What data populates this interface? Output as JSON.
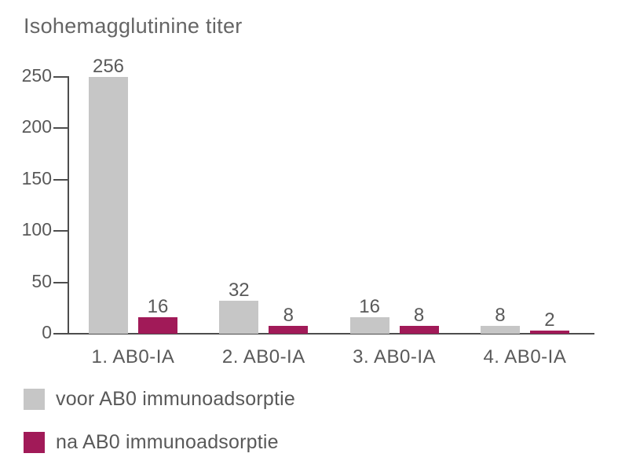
{
  "chart_data": {
    "type": "bar",
    "title": "Isohemagglutinine titer",
    "categories": [
      "1. AB0-IA",
      "2. AB0-IA",
      "3. AB0-IA",
      "4. AB0-IA"
    ],
    "series": [
      {
        "name": "voor AB0 immunoadsorptie",
        "color": "#c6c6c6",
        "values": [
          256,
          32,
          16,
          8
        ]
      },
      {
        "name": "na AB0 immunoadsorptie",
        "color": "#a11a58",
        "values": [
          16,
          8,
          8,
          2
        ]
      }
    ],
    "y_ticks": [
      0,
      50,
      100,
      150,
      200,
      250
    ],
    "ylim": [
      0,
      250
    ],
    "xlabel": "",
    "ylabel": "",
    "grid": false,
    "legend_position": "bottom-left",
    "bar_value_labels": true
  },
  "colors": {
    "text": "#595959",
    "axis": "#4d4d4d",
    "background": "#ffffff"
  }
}
